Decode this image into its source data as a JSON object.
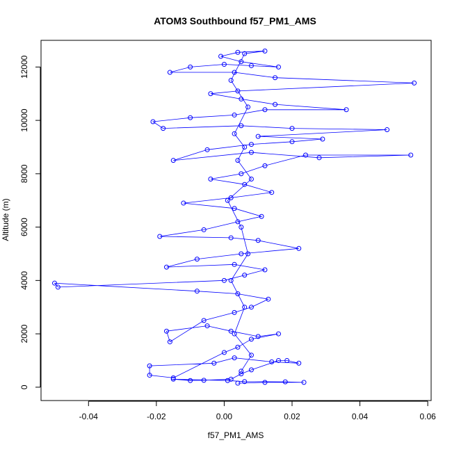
{
  "chart_data": {
    "type": "scatter",
    "title": "ATOM3 Southbound f57_PM1_AMS",
    "xlabel": "f57_PM1_AMS",
    "ylabel": "Altitude (m)",
    "xlim": [
      -0.054,
      0.061
    ],
    "ylim": [
      -500,
      13000
    ],
    "x_ticks": [
      {
        "value": -0.04,
        "label": "-0.04"
      },
      {
        "value": -0.02,
        "label": "-0.02"
      },
      {
        "value": 0.0,
        "label": "0.00"
      },
      {
        "value": 0.02,
        "label": "0.02"
      },
      {
        "value": 0.04,
        "label": "0.04"
      },
      {
        "value": 0.06,
        "label": "0.06"
      }
    ],
    "y_ticks": [
      {
        "value": 0,
        "label": "0"
      },
      {
        "value": 2000,
        "label": "2000"
      },
      {
        "value": 4000,
        "label": "4000"
      },
      {
        "value": 6000,
        "label": "6000"
      },
      {
        "value": 8000,
        "label": "8000"
      },
      {
        "value": 10000,
        "label": "10000"
      },
      {
        "value": 12000,
        "label": "12000"
      }
    ],
    "grid": false,
    "legend": "none",
    "marker": "open-circle",
    "connected": true,
    "color": "#0000ff",
    "series": [
      {
        "points": [
          [
            0.004,
            150
          ],
          [
            0.012,
            180
          ],
          [
            0.0235,
            180
          ],
          [
            0.018,
            200
          ],
          [
            0.006,
            210
          ],
          [
            0.001,
            250
          ],
          [
            -0.015,
            300
          ],
          [
            -0.01,
            250
          ],
          [
            -0.006,
            260
          ],
          [
            0.002,
            300
          ],
          [
            0.005,
            500
          ],
          [
            0.008,
            650
          ],
          [
            0.016,
            1000
          ],
          [
            0.0185,
            1000
          ],
          [
            0.022,
            900
          ],
          [
            0.014,
            950
          ],
          [
            0.003,
            1100
          ],
          [
            -0.003,
            900
          ],
          [
            -0.022,
            800
          ],
          [
            -0.022,
            450
          ],
          [
            -0.015,
            350
          ],
          [
            0.0,
            1300
          ],
          [
            0.004,
            1500
          ],
          [
            0.008,
            1800
          ],
          [
            0.016,
            2000
          ],
          [
            0.01,
            1900
          ],
          [
            0.002,
            2100
          ],
          [
            -0.005,
            2300
          ],
          [
            -0.017,
            2100
          ],
          [
            -0.016,
            1700
          ],
          [
            -0.006,
            2500
          ],
          [
            0.003,
            2800
          ],
          [
            0.008,
            3000
          ],
          [
            0.013,
            3300
          ],
          [
            0.004,
            3500
          ],
          [
            -0.008,
            3600
          ],
          [
            -0.05,
            3900
          ],
          [
            -0.049,
            3750
          ],
          [
            0.0,
            4000
          ],
          [
            0.006,
            4200
          ],
          [
            0.012,
            4400
          ],
          [
            0.003,
            4600
          ],
          [
            -0.017,
            4500
          ],
          [
            -0.008,
            4800
          ],
          [
            0.005,
            5000
          ],
          [
            0.022,
            5200
          ],
          [
            0.01,
            5500
          ],
          [
            0.002,
            5600
          ],
          [
            -0.019,
            5650
          ],
          [
            -0.006,
            5900
          ],
          [
            0.004,
            6200
          ],
          [
            0.011,
            6400
          ],
          [
            0.003,
            6700
          ],
          [
            -0.012,
            6900
          ],
          [
            0.002,
            7100
          ],
          [
            0.014,
            7300
          ],
          [
            0.006,
            7600
          ],
          [
            -0.004,
            7800
          ],
          [
            0.005,
            8000
          ],
          [
            0.012,
            8300
          ],
          [
            0.024,
            8700
          ],
          [
            0.055,
            8700
          ],
          [
            0.028,
            8600
          ],
          [
            0.008,
            8800
          ],
          [
            -0.015,
            8500
          ],
          [
            -0.005,
            8900
          ],
          [
            0.008,
            9100
          ],
          [
            0.02,
            9200
          ],
          [
            0.029,
            9300
          ],
          [
            0.01,
            9400
          ],
          [
            0.048,
            9650
          ],
          [
            0.02,
            9700
          ],
          [
            0.005,
            9800
          ],
          [
            -0.018,
            9700
          ],
          [
            -0.021,
            9950
          ],
          [
            -0.01,
            10100
          ],
          [
            0.003,
            10200
          ],
          [
            0.012,
            10400
          ],
          [
            0.036,
            10400
          ],
          [
            0.015,
            10600
          ],
          [
            0.005,
            10800
          ],
          [
            -0.004,
            11000
          ],
          [
            0.004,
            11100
          ],
          [
            0.056,
            11400
          ],
          [
            0.015,
            11600
          ],
          [
            0.003,
            11800
          ],
          [
            -0.016,
            11800
          ],
          [
            -0.01,
            12000
          ],
          [
            0.0,
            12100
          ],
          [
            0.008,
            12050
          ],
          [
            0.016,
            12000
          ],
          [
            0.005,
            12200
          ],
          [
            -0.001,
            12400
          ],
          [
            0.004,
            12550
          ],
          [
            0.012,
            12600
          ],
          [
            0.006,
            12500
          ],
          [
            0.002,
            11500
          ],
          [
            0.007,
            10500
          ],
          [
            0.003,
            9500
          ],
          [
            0.006,
            9000
          ],
          [
            0.004,
            8500
          ],
          [
            0.008,
            7800
          ],
          [
            0.001,
            7000
          ],
          [
            0.005,
            6000
          ],
          [
            0.007,
            5000
          ],
          [
            0.002,
            4000
          ],
          [
            0.006,
            3000
          ],
          [
            0.003,
            2000
          ],
          [
            0.008,
            1200
          ],
          [
            0.005,
            600
          ]
        ]
      }
    ]
  }
}
